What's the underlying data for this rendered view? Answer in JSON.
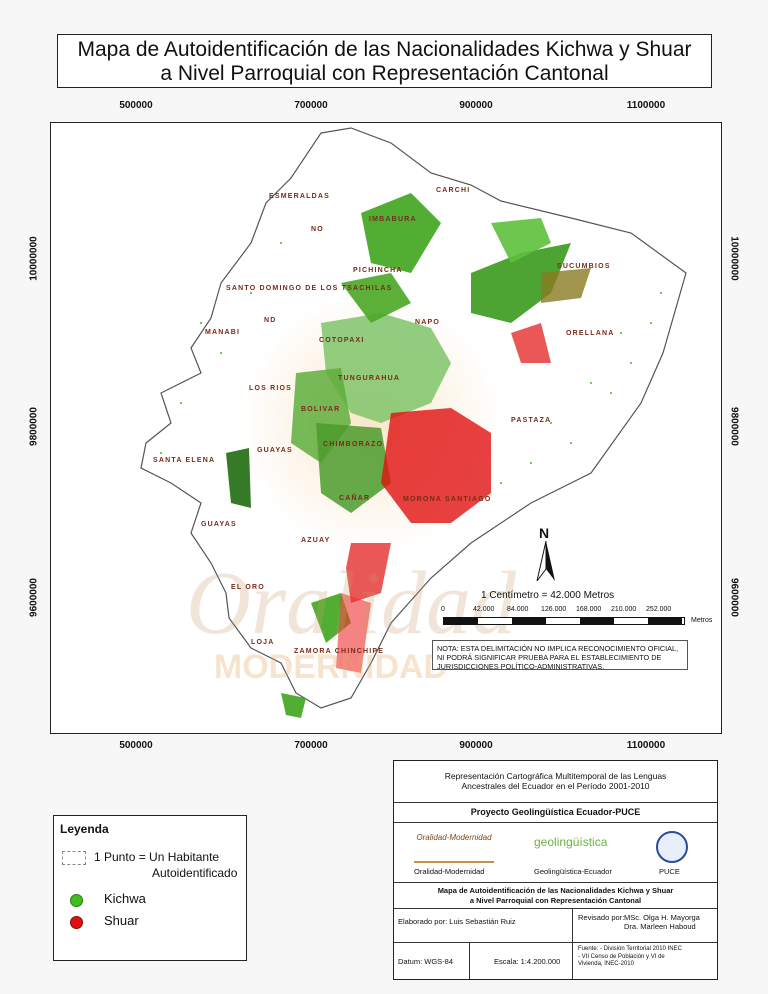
{
  "title_line1": "Mapa de Autoidentificación de las Nacionalidades Kichwa y Shuar",
  "title_line2": "a Nivel Parroquial con Representación Cantonal",
  "x_ticks": [
    "500000",
    "700000",
    "900000",
    "1100000"
  ],
  "y_ticks": [
    "10000000",
    "9800000",
    "9600000"
  ],
  "provinces": [
    "CARCHI",
    "ESMERALDAS",
    "IMBABURA",
    "NO",
    "PICHINCHA",
    "SUCUMBIOS",
    "SANTO DOMINGO DE LOS TSACHILAS",
    "ND",
    "NAPO",
    "ORELLANA",
    "MANABI",
    "COTOPAXI",
    "TUNGURAHUA",
    "LOS RIOS",
    "BOLIVAR",
    "PASTAZA",
    "CHIMBORAZO",
    "SANTA ELENA",
    "GUAYAS",
    "MORONA SANTIAGO",
    "CAÑAR",
    "GUAYAS",
    "AZUAY",
    "EL ORO",
    "LOJA",
    "ZAMORA CHINCHIPE"
  ],
  "north_label": "N",
  "scale_text": "1 Centímetro = 42.000 Metros",
  "scale_ticks": [
    "0",
    "42.000",
    "84.000",
    "126.000",
    "168.000",
    "210.000",
    "252.000"
  ],
  "scale_unit": "Metros",
  "nota": "NOTA: ESTA DELIMITACIÓN NO IMPLICA RECONOCIMIENTO OFICIAL, NI PODRÁ SIGNIFICAR PRUEBA PARA EL ESTABLECIMIENTO DE JURISDICCIONES POLÍTICO-ADMINISTRATIVAS.",
  "watermark_1": "Oralidad",
  "watermark_2": "MODERNIDAD",
  "legend": {
    "title": "Leyenda",
    "dot_label_1": "1 Punto = Un Habitante",
    "dot_label_2": "Autoidentificado",
    "kichwa": "Kichwa",
    "shuar": "Shuar",
    "kichwa_color": "#3fbf1a",
    "shuar_color": "#e01010"
  },
  "info": {
    "header1": "Representación Cartográfica Multitemporal de las Lenguas",
    "header2": "Ancestrales del Ecuador en el Período 2001-2010",
    "project": "Proyecto  Geolingüística Ecuador-PUCE",
    "logo1": "Oralidad-Modernidad",
    "logo2": "Geolingüística-Ecuador",
    "logo3": "PUCE",
    "logo2_text": "geolingüística",
    "map_title1": "Mapa de Autoidentificación de las Nacionalidades Kichwa y Shuar",
    "map_title2": "a Nivel Parroquial con Representación Cantonal",
    "elaborado": "Elaborado por: Luis Sebastián Ruiz",
    "revisado": "Revisado por:",
    "rev1": "MSc. Olga H. Mayorga",
    "rev2": "Dra. Marleen Haboud",
    "datum": "Datum: WGS-84",
    "escala": "Escala: 1:4.200.000",
    "fuente1": "Fuente: - División Territorial 2010 INEC",
    "fuente2": "- VII Censo de Población y VI de",
    "fuente3": "Vivienda, INEC-2010"
  }
}
